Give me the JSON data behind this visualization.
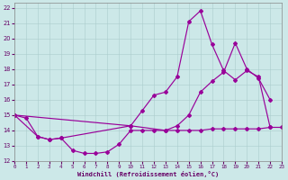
{
  "xlabel": "Windchill (Refroidissement éolien,°C)",
  "xlim": [
    0,
    23
  ],
  "ylim": [
    12,
    22.3
  ],
  "xticks": [
    0,
    1,
    2,
    3,
    4,
    5,
    6,
    7,
    8,
    9,
    10,
    11,
    12,
    13,
    14,
    15,
    16,
    17,
    18,
    19,
    20,
    21,
    22,
    23
  ],
  "yticks": [
    12,
    13,
    14,
    15,
    16,
    17,
    18,
    19,
    20,
    21,
    22
  ],
  "bg_color": "#cce8e8",
  "grid_color": "#aacccc",
  "line_color": "#990099",
  "line1_x": [
    0,
    1,
    2,
    3,
    4,
    5,
    6,
    7,
    8,
    9,
    10,
    11,
    12,
    13,
    14,
    15,
    16,
    17,
    18,
    19,
    20,
    21,
    22,
    23
  ],
  "line1_y": [
    15.0,
    14.8,
    13.6,
    13.4,
    13.5,
    12.7,
    12.5,
    12.5,
    12.6,
    13.1,
    14.0,
    14.0,
    14.0,
    14.0,
    14.0,
    14.0,
    14.0,
    14.1,
    14.1,
    14.1,
    14.1,
    14.1,
    14.2,
    14.2
  ],
  "line2_x": [
    0,
    2,
    3,
    4,
    10,
    11,
    12,
    13,
    14,
    15,
    16,
    17,
    18,
    19,
    20,
    21,
    22
  ],
  "line2_y": [
    15.0,
    13.6,
    13.4,
    13.5,
    14.3,
    15.3,
    16.3,
    16.5,
    17.5,
    21.1,
    21.8,
    19.6,
    17.9,
    17.3,
    17.9,
    17.5,
    14.2
  ],
  "line3_x": [
    0,
    10,
    13,
    14,
    15,
    16,
    17,
    18,
    19,
    20,
    21,
    22
  ],
  "line3_y": [
    15.0,
    14.3,
    14.0,
    14.3,
    15.0,
    16.5,
    17.2,
    17.8,
    19.7,
    18.0,
    17.4,
    16.0
  ]
}
